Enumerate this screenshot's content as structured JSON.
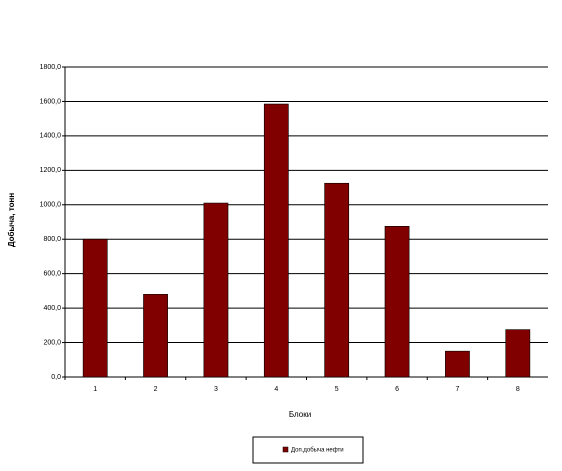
{
  "chart_data": {
    "type": "bar",
    "y_label": "Добыча, тонн",
    "x_label": "Блоки",
    "categories": [
      "1",
      "2",
      "3",
      "4",
      "5",
      "6",
      "7",
      "8"
    ],
    "series": [
      {
        "name": "Доп.добыча нефти",
        "color": "#800000",
        "values": [
          800,
          480,
          1010,
          1585,
          1125,
          875,
          150,
          275
        ]
      }
    ],
    "ylim": [
      0,
      1800
    ],
    "yticks": [
      {
        "value": 0,
        "label": "0,0"
      },
      {
        "value": 200,
        "label": "200,0"
      },
      {
        "value": 400,
        "label": "400,0"
      },
      {
        "value": 600,
        "label": "600,0"
      },
      {
        "value": 800,
        "label": "800,0"
      },
      {
        "value": 1000,
        "label": "1000,0"
      },
      {
        "value": 1200,
        "label": "1200,0"
      },
      {
        "value": 1400,
        "label": "1400,0"
      },
      {
        "value": 1600,
        "label": "1600,0"
      },
      {
        "value": 1800,
        "label": "1800,0"
      }
    ],
    "grid": true,
    "legend": "bottom"
  }
}
